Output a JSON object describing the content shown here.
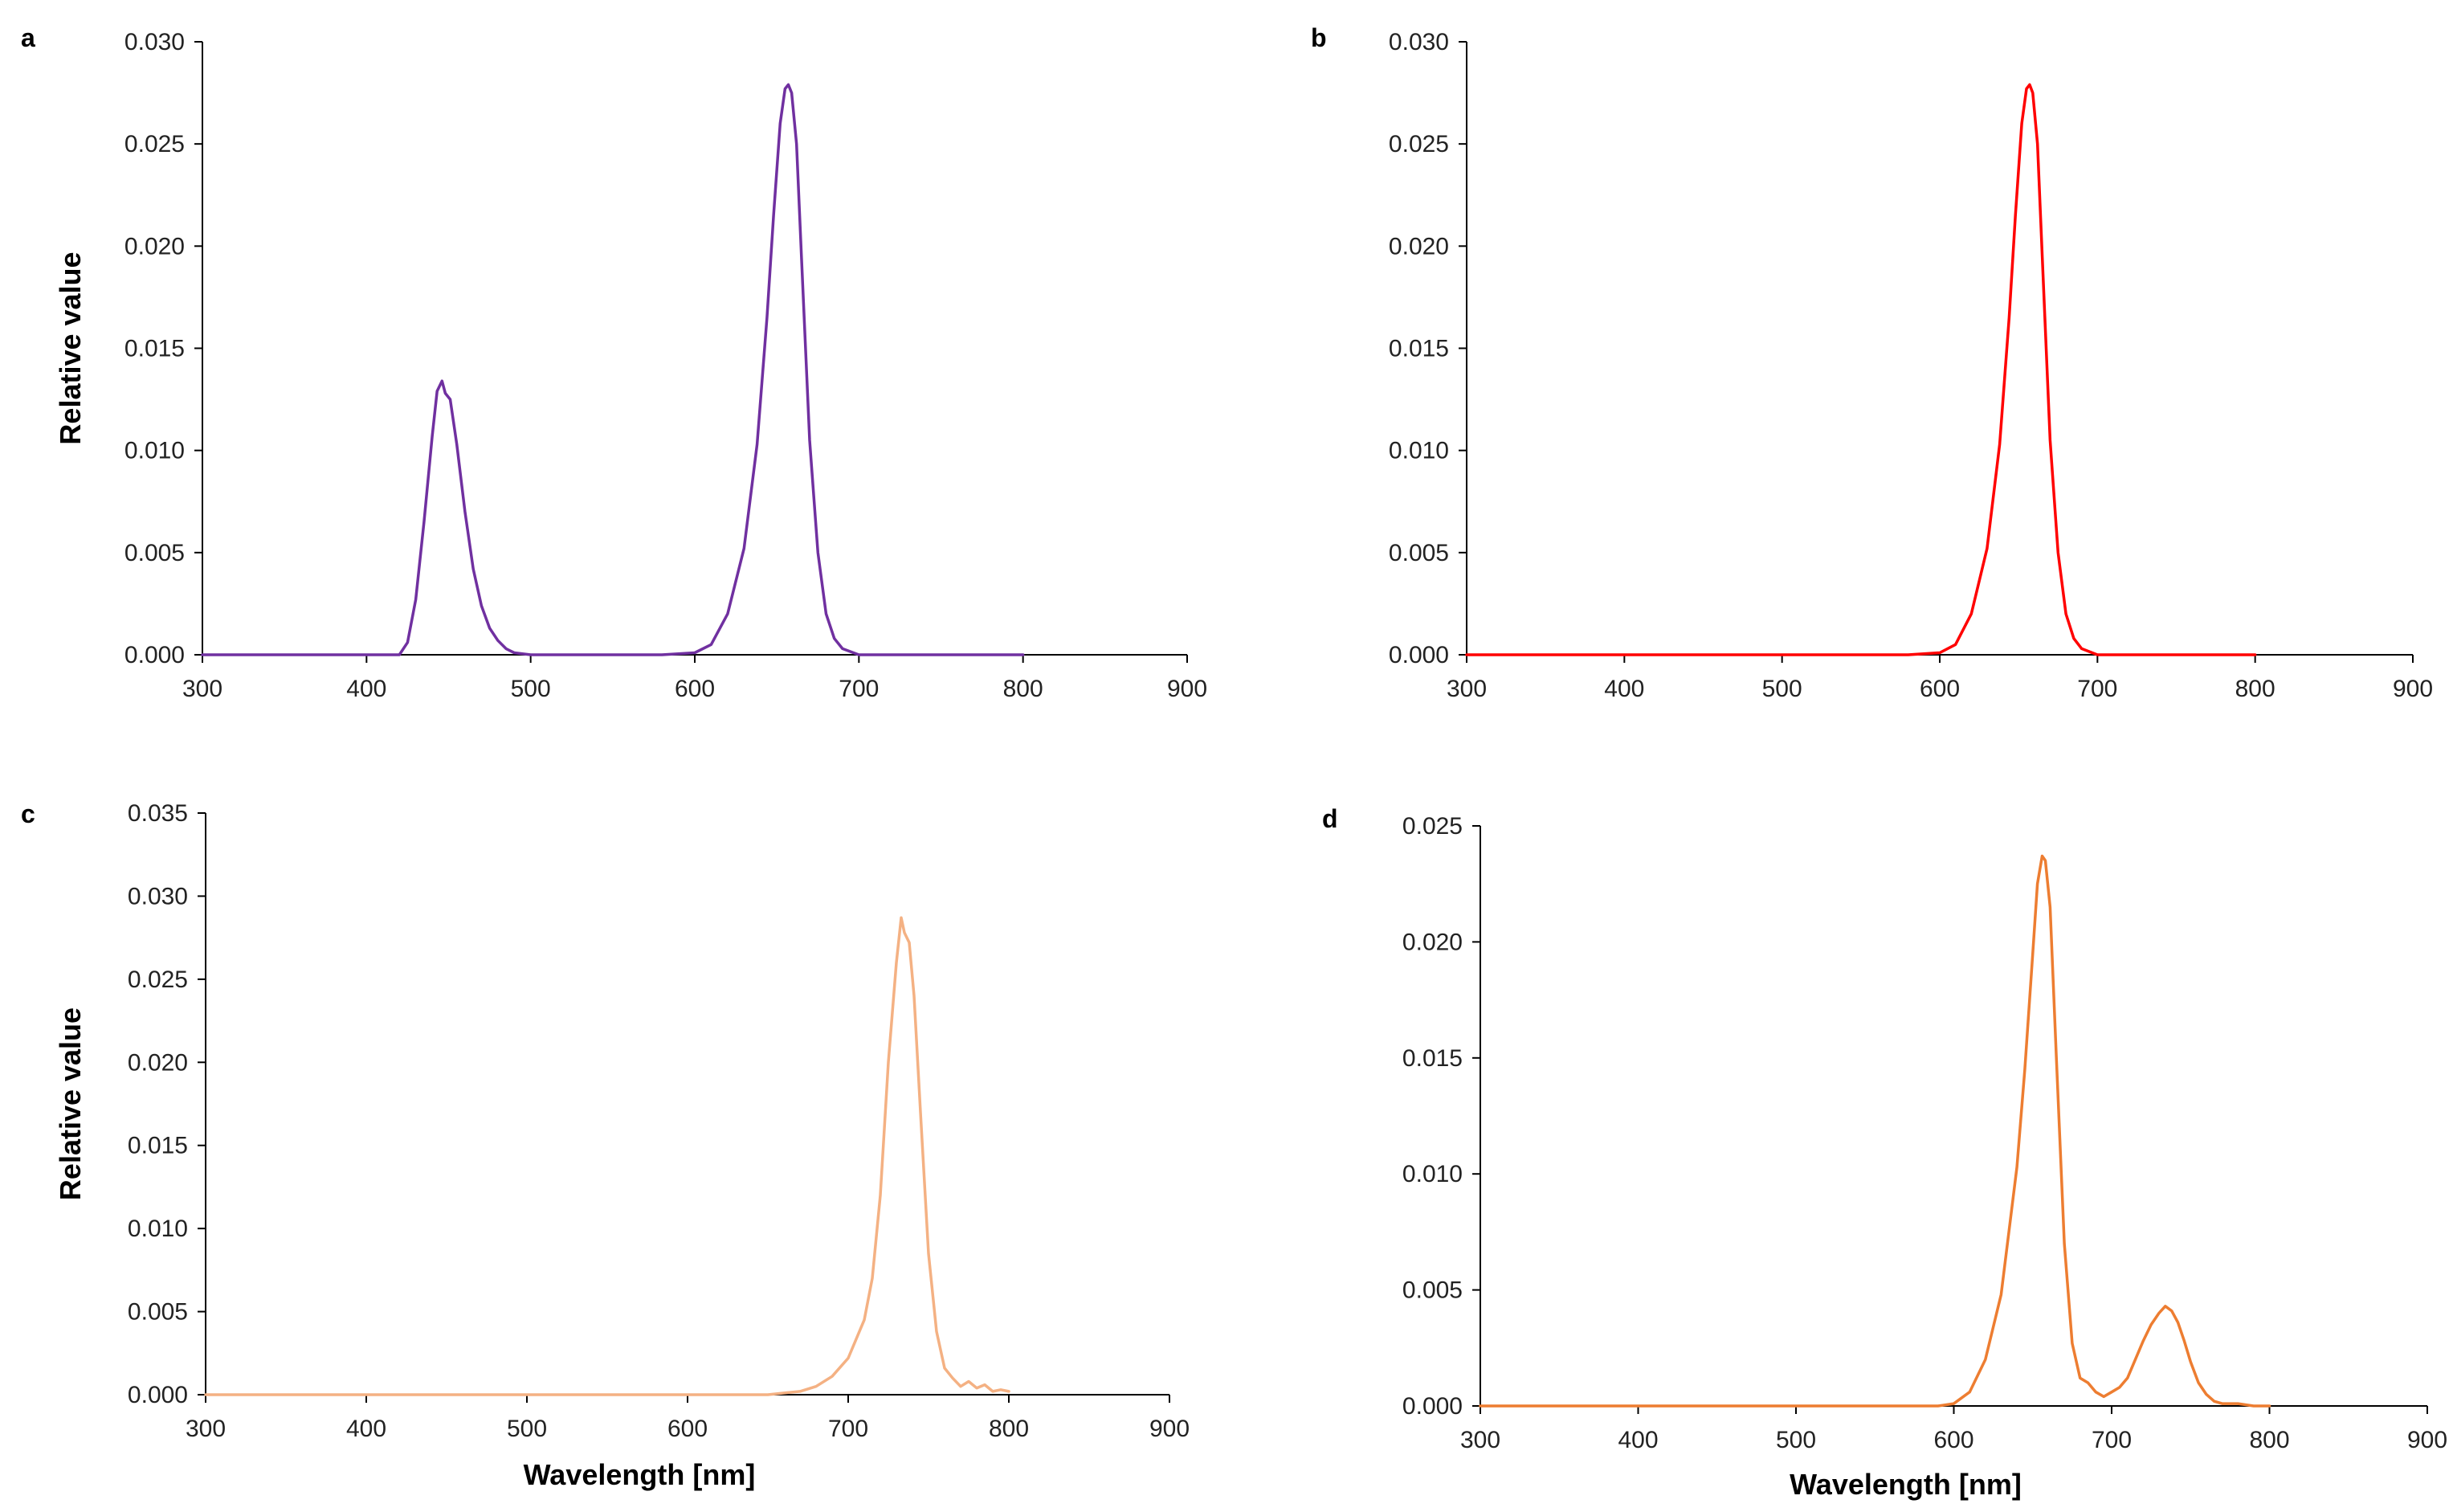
{
  "figure": {
    "description_label": "Four-panel spectral distribution figure",
    "axis_color": "#000000"
  },
  "chart_data": [
    {
      "type": "line",
      "panel": "a",
      "title": "",
      "xlabel": "",
      "ylabel": "Relative value",
      "xlim": [
        300,
        900
      ],
      "ylim": [
        0,
        0.03
      ],
      "xticks": [
        300,
        400,
        500,
        600,
        700,
        800,
        900
      ],
      "xtick_labels": [
        "300",
        "400",
        "500",
        "600",
        "700",
        "800",
        "900"
      ],
      "yticks": [
        0,
        0.005,
        0.01,
        0.015,
        0.02,
        0.025,
        0.03
      ],
      "ytick_labels": [
        "0.000",
        "0.005",
        "0.010",
        "0.015",
        "0.020",
        "0.025",
        "0.030"
      ],
      "grid": false,
      "series": [
        {
          "name": "spectrum",
          "color": "#7030A0",
          "x": [
            300,
            420,
            425,
            430,
            435,
            440,
            443,
            446,
            448,
            451,
            455,
            460,
            465,
            470,
            475,
            480,
            485,
            490,
            500,
            580,
            600,
            610,
            620,
            630,
            638,
            644,
            648,
            652,
            655,
            657,
            659,
            662,
            665,
            670,
            675,
            680,
            685,
            690,
            700,
            800
          ],
          "values": [
            0,
            0,
            0.0006,
            0.0027,
            0.0065,
            0.0107,
            0.0129,
            0.0134,
            0.0128,
            0.0125,
            0.0103,
            0.007,
            0.0042,
            0.0024,
            0.0013,
            0.0007,
            0.0003,
            0.0001,
            0,
            0,
            0.0001,
            0.0005,
            0.002,
            0.0052,
            0.0103,
            0.0165,
            0.0215,
            0.026,
            0.0277,
            0.0279,
            0.0275,
            0.025,
            0.0195,
            0.0105,
            0.005,
            0.002,
            0.0008,
            0.0003,
            0,
            0
          ]
        }
      ]
    },
    {
      "type": "line",
      "panel": "b",
      "title": "",
      "xlabel": "",
      "ylabel": "",
      "xlim": [
        300,
        900
      ],
      "ylim": [
        0,
        0.03
      ],
      "xticks": [
        300,
        400,
        500,
        600,
        700,
        800,
        900
      ],
      "xtick_labels": [
        "300",
        "400",
        "500",
        "600",
        "700",
        "800",
        "900"
      ],
      "yticks": [
        0,
        0.005,
        0.01,
        0.015,
        0.02,
        0.025,
        0.03
      ],
      "ytick_labels": [
        "0.000",
        "0.005",
        "0.010",
        "0.015",
        "0.020",
        "0.025",
        "0.030"
      ],
      "grid": false,
      "series": [
        {
          "name": "spectrum",
          "color": "#FF0000",
          "x": [
            300,
            580,
            600,
            610,
            620,
            630,
            638,
            644,
            648,
            652,
            655,
            657,
            659,
            662,
            665,
            670,
            675,
            680,
            685,
            690,
            700,
            800
          ],
          "values": [
            0,
            0,
            0.0001,
            0.0005,
            0.002,
            0.0052,
            0.0103,
            0.0165,
            0.0215,
            0.026,
            0.0277,
            0.0279,
            0.0275,
            0.025,
            0.0195,
            0.0105,
            0.005,
            0.002,
            0.0008,
            0.0003,
            0,
            0
          ]
        }
      ]
    },
    {
      "type": "line",
      "panel": "c",
      "title": "",
      "xlabel": "Wavelength [nm]",
      "ylabel": "Relative value",
      "xlim": [
        300,
        900
      ],
      "ylim": [
        0,
        0.035
      ],
      "xticks": [
        300,
        400,
        500,
        600,
        700,
        800,
        900
      ],
      "xtick_labels": [
        "300",
        "400",
        "500",
        "600",
        "700",
        "800",
        "900"
      ],
      "yticks": [
        0,
        0.005,
        0.01,
        0.015,
        0.02,
        0.025,
        0.03,
        0.035
      ],
      "ytick_labels": [
        "0.000",
        "0.005",
        "0.010",
        "0.015",
        "0.020",
        "0.025",
        "0.030",
        "0.035"
      ],
      "grid": false,
      "series": [
        {
          "name": "spectrum",
          "color": "#F4B183",
          "x": [
            300,
            650,
            660,
            670,
            680,
            690,
            700,
            710,
            715,
            720,
            725,
            730,
            733,
            735,
            738,
            741,
            745,
            750,
            755,
            760,
            765,
            770,
            775,
            780,
            785,
            790,
            795,
            800
          ],
          "values": [
            0,
            0,
            0.0001,
            0.0002,
            0.0005,
            0.0011,
            0.0022,
            0.0045,
            0.007,
            0.012,
            0.02,
            0.026,
            0.0287,
            0.0278,
            0.0272,
            0.024,
            0.017,
            0.0085,
            0.0038,
            0.0016,
            0.001,
            0.0005,
            0.0008,
            0.0004,
            0.0006,
            0.0002,
            0.0003,
            0.0002
          ]
        }
      ]
    },
    {
      "type": "line",
      "panel": "d",
      "title": "",
      "xlabel": "Wavelength [nm]",
      "ylabel": "",
      "xlim": [
        300,
        900
      ],
      "ylim": [
        0,
        0.025
      ],
      "xticks": [
        300,
        400,
        500,
        600,
        700,
        800,
        900
      ],
      "xtick_labels": [
        "300",
        "400",
        "500",
        "600",
        "700",
        "800",
        "900"
      ],
      "yticks": [
        0,
        0.005,
        0.01,
        0.015,
        0.02,
        0.025
      ],
      "ytick_labels": [
        "0.000",
        "0.005",
        "0.010",
        "0.015",
        "0.020",
        "0.025"
      ],
      "grid": false,
      "series": [
        {
          "name": "spectrum",
          "color": "#ED7D31",
          "x": [
            300,
            590,
            600,
            610,
            620,
            630,
            640,
            645,
            650,
            653,
            656,
            658,
            661,
            665,
            670,
            675,
            680,
            685,
            690,
            695,
            700,
            705,
            710,
            715,
            720,
            725,
            730,
            734,
            738,
            742,
            746,
            750,
            755,
            760,
            765,
            770,
            780,
            790,
            800
          ],
          "values": [
            0,
            0,
            0.0001,
            0.0006,
            0.002,
            0.0048,
            0.0103,
            0.0145,
            0.0195,
            0.0225,
            0.0237,
            0.0235,
            0.0215,
            0.015,
            0.007,
            0.0027,
            0.0012,
            0.001,
            0.0006,
            0.0004,
            0.0006,
            0.0008,
            0.0012,
            0.002,
            0.0028,
            0.0035,
            0.004,
            0.0043,
            0.0041,
            0.0036,
            0.0028,
            0.0019,
            0.001,
            0.0005,
            0.0002,
            0.0001,
            0.0001,
            0,
            0
          ]
        }
      ]
    }
  ]
}
